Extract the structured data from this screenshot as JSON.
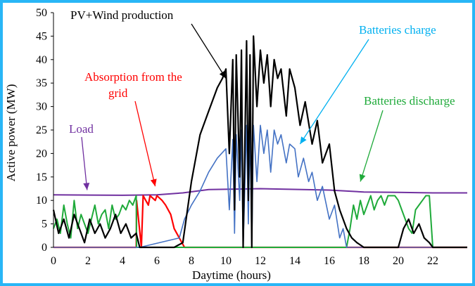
{
  "colors": {
    "border": "#29b6f6",
    "production": "#000000",
    "charge": "#4472c4",
    "discharge": "#1faa3a",
    "grid": "#ff0000",
    "load": "#7030a0",
    "charge_label": "#00b0f0"
  },
  "chart_data": {
    "type": "line",
    "xlabel": "Daytime (hours)",
    "ylabel": "Active power (MW)",
    "xlim": [
      0,
      24
    ],
    "ylim": [
      0,
      50
    ],
    "xticks": [
      0,
      2,
      4,
      6,
      8,
      10,
      12,
      14,
      16,
      18,
      20,
      22
    ],
    "yticks": [
      0,
      5,
      10,
      15,
      20,
      25,
      30,
      35,
      40,
      45,
      50
    ],
    "grid": false,
    "annotations": [
      {
        "text": "PV+Wind production",
        "series": "production"
      },
      {
        "text": "Batteries charge",
        "series": "charge"
      },
      {
        "text": "Absorption from the grid",
        "lines": [
          "Absorption from the",
          "grid"
        ],
        "series": "grid"
      },
      {
        "text": "Batteries discharge",
        "series": "discharge"
      },
      {
        "text": "Load",
        "series": "load"
      }
    ],
    "series": [
      {
        "name": "Load",
        "key": "load",
        "x": [
          0,
          4,
          6,
          7.5,
          9,
          12,
          16,
          18,
          20,
          22,
          24
        ],
        "y": [
          11.2,
          11.1,
          11.2,
          11.6,
          12.3,
          12.5,
          12.2,
          11.8,
          11.7,
          11.6,
          11.6
        ]
      },
      {
        "name": "Absorption from the grid",
        "key": "grid",
        "x": [
          0,
          4.8,
          4.82,
          5.1,
          5.2,
          5.5,
          5.6,
          5.9,
          6.0,
          6.3,
          6.5,
          6.8,
          7.0,
          7.3,
          7.6,
          7.7,
          24
        ],
        "y": [
          0,
          0,
          10,
          0,
          11,
          9,
          11,
          10,
          11,
          10,
          9,
          7,
          4,
          2,
          0,
          0,
          0
        ]
      },
      {
        "name": "Batteries discharge",
        "key": "discharge",
        "x": [
          0,
          0.2,
          0.4,
          0.6,
          0.8,
          1.0,
          1.2,
          1.4,
          1.6,
          1.8,
          2.0,
          2.2,
          2.4,
          2.6,
          2.8,
          3.0,
          3.2,
          3.4,
          3.6,
          3.8,
          4.0,
          4.2,
          4.4,
          4.6,
          4.8,
          4.82,
          17.0,
          17.2,
          17.4,
          17.6,
          17.8,
          18.0,
          18.2,
          18.4,
          18.6,
          18.8,
          19.0,
          19.2,
          19.4,
          19.6,
          19.8,
          20.0,
          20.2,
          20.4,
          20.6,
          20.8,
          21.0,
          21.2,
          21.4,
          21.6,
          21.8,
          22.0,
          24
        ],
        "y": [
          4,
          6,
          3,
          9,
          5,
          2,
          10,
          4,
          7,
          5,
          3,
          6,
          9,
          5,
          7,
          8,
          4,
          9,
          6,
          7,
          9,
          8,
          10,
          9,
          11,
          0,
          0,
          4,
          9,
          6,
          10,
          7,
          9,
          11,
          8,
          10,
          11,
          9,
          11,
          11,
          11,
          10,
          8,
          6,
          4,
          3,
          8,
          9,
          10,
          11,
          11,
          0,
          0
        ]
      },
      {
        "name": "Batteries charge",
        "key": "charge",
        "x": [
          0,
          5.0,
          7.3,
          7.6,
          8.0,
          8.5,
          9.0,
          9.5,
          10.0,
          10.2,
          10.4,
          10.5,
          10.6,
          10.8,
          10.9,
          11.0,
          11.2,
          11.3,
          11.4,
          11.5,
          11.6,
          11.8,
          12.0,
          12.2,
          12.4,
          12.6,
          12.8,
          13.0,
          13.2,
          13.5,
          13.7,
          14.0,
          14.2,
          14.5,
          14.8,
          15.0,
          15.3,
          15.6,
          16.0,
          16.3,
          16.6,
          16.8,
          17.0,
          24
        ],
        "y": [
          0,
          0,
          2,
          6,
          9,
          12,
          16,
          19,
          21,
          8,
          23,
          3,
          24,
          10,
          25,
          0,
          26,
          5,
          25,
          0,
          26,
          14,
          26,
          20,
          25,
          16,
          25,
          22,
          24,
          18,
          22,
          21,
          15,
          19,
          14,
          16,
          10,
          13,
          6,
          9,
          2,
          4,
          0,
          0
        ]
      },
      {
        "name": "PV+Wind production",
        "key": "production",
        "x": [
          0,
          0.3,
          0.6,
          0.9,
          1.2,
          1.5,
          1.8,
          2.1,
          2.4,
          2.7,
          3.0,
          3.3,
          3.6,
          3.9,
          4.2,
          4.5,
          4.8,
          5.0,
          5.5,
          6.0,
          6.5,
          7.0,
          7.5,
          8.0,
          8.5,
          9.0,
          9.5,
          9.8,
          10.0,
          10.2,
          10.4,
          10.5,
          10.6,
          10.8,
          10.9,
          11.0,
          11.2,
          11.3,
          11.4,
          11.5,
          11.6,
          11.8,
          12.0,
          12.2,
          12.4,
          12.6,
          12.8,
          13.0,
          13.2,
          13.5,
          13.7,
          14.0,
          14.3,
          14.6,
          15.0,
          15.3,
          15.6,
          16.0,
          16.3,
          16.6,
          17.0,
          17.3,
          17.6,
          18.0,
          18.5,
          19.0,
          19.5,
          20.0,
          20.3,
          20.6,
          20.9,
          21.2,
          21.5,
          21.8,
          22.0,
          24
        ],
        "y": [
          8,
          3,
          6,
          2,
          7,
          4,
          1,
          6,
          3,
          5,
          2,
          4,
          7,
          3,
          5,
          2,
          3,
          0,
          0,
          0,
          0,
          0,
          1,
          14,
          24,
          29,
          34,
          36,
          38,
          20,
          40,
          8,
          41,
          15,
          42,
          0,
          44,
          10,
          41,
          0,
          45,
          30,
          42,
          35,
          41,
          30,
          40,
          36,
          38,
          28,
          38,
          34,
          26,
          31,
          22,
          27,
          18,
          22,
          12,
          8,
          4,
          2,
          1,
          0,
          0,
          0,
          0,
          0,
          4,
          6,
          3,
          5,
          2,
          1,
          0,
          0
        ]
      }
    ]
  }
}
